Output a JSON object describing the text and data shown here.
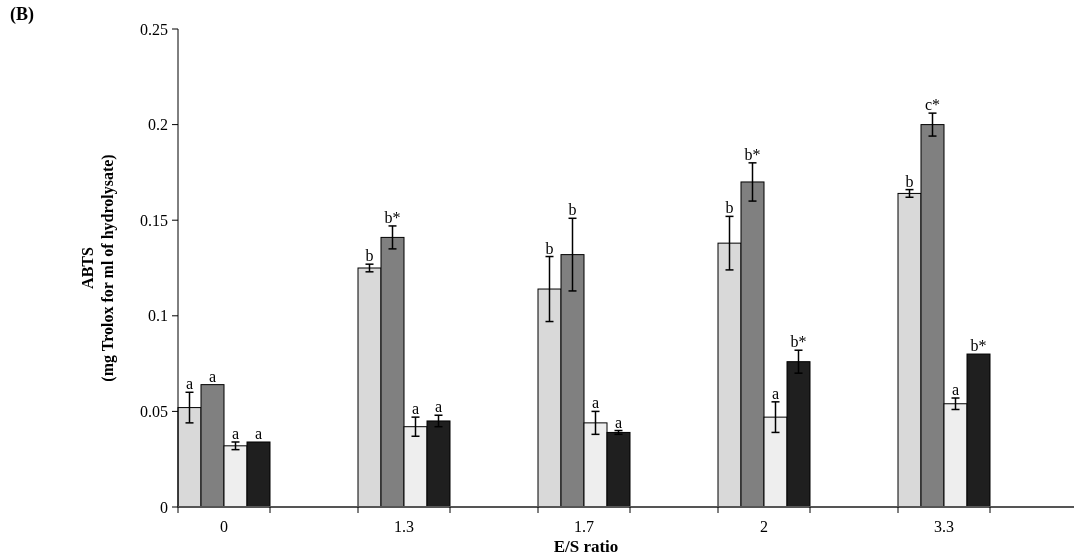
{
  "chart_data": {
    "type": "bar",
    "title": "(B)",
    "xlabel": "E/S ratio",
    "ylabel": "ABTS\n(mg Trolox for ml of hydrolysate)",
    "categories": [
      "0",
      "1.3",
      "1.7",
      "2",
      "3.3"
    ],
    "series": [
      {
        "color": "#d9d9d9",
        "values": [
          0.052,
          0.125,
          0.114,
          0.138,
          0.164
        ],
        "errors": [
          0.008,
          0.002,
          0.017,
          0.014,
          0.002
        ]
      },
      {
        "color": "#808080",
        "values": [
          0.064,
          0.141,
          0.132,
          0.17,
          0.2
        ],
        "errors": [
          null,
          0.006,
          0.019,
          0.01,
          0.006
        ]
      },
      {
        "color": "#eeeeee",
        "values": [
          0.032,
          0.042,
          0.044,
          0.047,
          0.054
        ],
        "errors": [
          0.002,
          0.005,
          0.006,
          0.008,
          0.003
        ]
      },
      {
        "color": "#1f1f1f",
        "values": [
          0.034,
          0.045,
          0.039,
          0.076,
          0.08
        ],
        "errors": [
          null,
          0.003,
          0.001,
          0.006,
          null
        ]
      }
    ],
    "ylim": [
      0,
      0.25
    ],
    "yticks": [
      0,
      0.05,
      0.1,
      0.15,
      0.2,
      0.25
    ],
    "grid": false,
    "annotations": [
      {
        "text": "a",
        "x": "0",
        "y": 0.052
      },
      {
        "text": "a",
        "x": "0",
        "y": 0.064
      },
      {
        "text": "a",
        "x": "0",
        "y": 0.032
      },
      {
        "text": "a",
        "x": "0",
        "y": 0.034
      },
      {
        "text": "b",
        "x": "1.3",
        "y": 0.125
      },
      {
        "text": "b*",
        "x": "1.3",
        "y": 0.141
      },
      {
        "text": "a",
        "x": "1.3",
        "y": 0.042
      },
      {
        "text": "a",
        "x": "1.3",
        "y": 0.045
      },
      {
        "text": "b",
        "x": "1.7",
        "y": 0.114
      },
      {
        "text": "b",
        "x": "1.7",
        "y": 0.132
      },
      {
        "text": "a",
        "x": "1.7",
        "y": 0.044
      },
      {
        "text": "a",
        "x": "1.7",
        "y": 0.039
      },
      {
        "text": "b",
        "x": "2",
        "y": 0.138
      },
      {
        "text": "b*",
        "x": "2",
        "y": 0.17
      },
      {
        "text": "a",
        "x": "2",
        "y": 0.047
      },
      {
        "text": "b*",
        "x": "2",
        "y": 0.076
      },
      {
        "text": "b",
        "x": "3.3",
        "y": 0.164
      },
      {
        "text": "c*",
        "x": "3.3",
        "y": 0.2
      },
      {
        "text": "a",
        "x": "3.3",
        "y": 0.054
      },
      {
        "text": "b*",
        "x": "3.3",
        "y": 0.08
      }
    ]
  }
}
